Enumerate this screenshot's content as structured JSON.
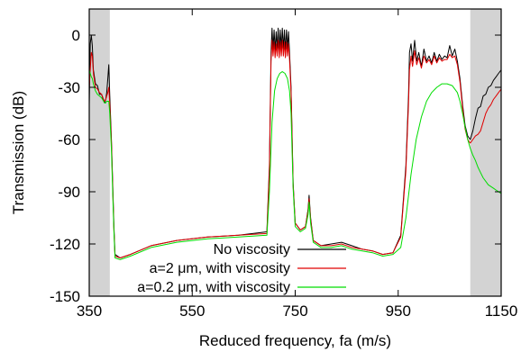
{
  "chart_data": {
    "type": "line",
    "xlabel": "Reduced frequency, fa (m/s)",
    "ylabel": "Transmission (dB)",
    "xlim": [
      350,
      1150
    ],
    "ylim": [
      -150,
      15
    ],
    "x_ticks": [
      350,
      550,
      750,
      950,
      1150
    ],
    "y_ticks": [
      0,
      -30,
      -60,
      -90,
      -120,
      -150
    ],
    "grid": false,
    "legend_position": "bottom-right",
    "shaded_bands": [
      {
        "x_from": 350,
        "x_to": 390,
        "color": "#d3d3d3"
      },
      {
        "x_from": 1090,
        "x_to": 1150,
        "color": "#d3d3d3"
      }
    ],
    "series": [
      {
        "name": "No viscosity",
        "color": "#000000",
        "points": [
          [
            350,
            -40
          ],
          [
            352,
            -5
          ],
          [
            354,
            0
          ],
          [
            356,
            -6
          ],
          [
            358,
            -20
          ],
          [
            362,
            -28
          ],
          [
            366,
            -29
          ],
          [
            370,
            -34
          ],
          [
            374,
            -34
          ],
          [
            378,
            -38
          ],
          [
            380,
            -39
          ],
          [
            382,
            -37
          ],
          [
            384,
            -33
          ],
          [
            386,
            -25
          ],
          [
            388,
            -17
          ],
          [
            390,
            -35
          ],
          [
            393,
            -60
          ],
          [
            396,
            -90
          ],
          [
            398,
            -110
          ],
          [
            400,
            -126
          ],
          [
            410,
            -128
          ],
          [
            430,
            -126
          ],
          [
            470,
            -121
          ],
          [
            520,
            -118
          ],
          [
            580,
            -116
          ],
          [
            640,
            -115
          ],
          [
            695,
            -113
          ],
          [
            700,
            -75
          ],
          [
            703,
            -10
          ],
          [
            705,
            4
          ],
          [
            707,
            -8
          ],
          [
            709,
            3
          ],
          [
            711,
            -9
          ],
          [
            713,
            2
          ],
          [
            715,
            -8
          ],
          [
            717,
            4
          ],
          [
            719,
            -9
          ],
          [
            721,
            3
          ],
          [
            723,
            -8
          ],
          [
            725,
            4
          ],
          [
            727,
            -8
          ],
          [
            729,
            3
          ],
          [
            731,
            -9
          ],
          [
            733,
            3
          ],
          [
            735,
            -8
          ],
          [
            737,
            2
          ],
          [
            739,
            -10
          ],
          [
            742,
            -30
          ],
          [
            746,
            -85
          ],
          [
            750,
            -108
          ],
          [
            760,
            -112
          ],
          [
            770,
            -110
          ],
          [
            775,
            -100
          ],
          [
            777,
            -92
          ],
          [
            780,
            -105
          ],
          [
            785,
            -118
          ],
          [
            800,
            -121
          ],
          [
            820,
            -120
          ],
          [
            840,
            -119
          ],
          [
            860,
            -121
          ],
          [
            880,
            -123
          ],
          [
            900,
            -124
          ],
          [
            920,
            -126
          ],
          [
            940,
            -125
          ],
          [
            955,
            -115
          ],
          [
            965,
            -75
          ],
          [
            970,
            -35
          ],
          [
            972,
            -10
          ],
          [
            975,
            -5
          ],
          [
            978,
            -15
          ],
          [
            982,
            -3
          ],
          [
            986,
            -15
          ],
          [
            990,
            -10
          ],
          [
            995,
            -18
          ],
          [
            1000,
            -8
          ],
          [
            1005,
            -15
          ],
          [
            1010,
            -12
          ],
          [
            1015,
            -16
          ],
          [
            1020,
            -10
          ],
          [
            1025,
            -15
          ],
          [
            1030,
            -11
          ],
          [
            1035,
            -14
          ],
          [
            1040,
            -12
          ],
          [
            1045,
            -13
          ],
          [
            1050,
            -6
          ],
          [
            1055,
            -12
          ],
          [
            1060,
            -8
          ],
          [
            1065,
            -15
          ],
          [
            1070,
            -25
          ],
          [
            1075,
            -40
          ],
          [
            1080,
            -52
          ],
          [
            1085,
            -58
          ],
          [
            1090,
            -60
          ],
          [
            1095,
            -55
          ],
          [
            1100,
            -48
          ],
          [
            1105,
            -42
          ],
          [
            1110,
            -41
          ],
          [
            1115,
            -35
          ],
          [
            1120,
            -34
          ],
          [
            1125,
            -30
          ],
          [
            1130,
            -29
          ],
          [
            1135,
            -26
          ],
          [
            1140,
            -24
          ],
          [
            1145,
            -22
          ],
          [
            1150,
            -20
          ]
        ]
      },
      {
        "name": "a=2 μm, with viscosity",
        "color": "#e00000",
        "points": [
          [
            350,
            -30
          ],
          [
            352,
            -20
          ],
          [
            354,
            -10
          ],
          [
            356,
            -12
          ],
          [
            358,
            -22
          ],
          [
            362,
            -30
          ],
          [
            366,
            -31
          ],
          [
            370,
            -33
          ],
          [
            374,
            -34
          ],
          [
            378,
            -37
          ],
          [
            380,
            -38
          ],
          [
            382,
            -37
          ],
          [
            384,
            -35
          ],
          [
            386,
            -33
          ],
          [
            388,
            -30
          ],
          [
            390,
            -40
          ],
          [
            393,
            -62
          ],
          [
            396,
            -92
          ],
          [
            398,
            -112
          ],
          [
            400,
            -127
          ],
          [
            410,
            -128
          ],
          [
            430,
            -126
          ],
          [
            470,
            -121
          ],
          [
            520,
            -118
          ],
          [
            580,
            -116
          ],
          [
            640,
            -115
          ],
          [
            695,
            -114
          ],
          [
            700,
            -78
          ],
          [
            703,
            -15
          ],
          [
            705,
            -3
          ],
          [
            707,
            -12
          ],
          [
            709,
            -4
          ],
          [
            711,
            -13
          ],
          [
            713,
            -5
          ],
          [
            715,
            -12
          ],
          [
            717,
            -3
          ],
          [
            719,
            -13
          ],
          [
            721,
            -4
          ],
          [
            723,
            -12
          ],
          [
            725,
            -3
          ],
          [
            727,
            -12
          ],
          [
            729,
            -4
          ],
          [
            731,
            -13
          ],
          [
            733,
            -4
          ],
          [
            735,
            -12
          ],
          [
            737,
            -5
          ],
          [
            739,
            -14
          ],
          [
            742,
            -33
          ],
          [
            746,
            -86
          ],
          [
            750,
            -108
          ],
          [
            760,
            -112
          ],
          [
            770,
            -110
          ],
          [
            775,
            -101
          ],
          [
            777,
            -94
          ],
          [
            780,
            -106
          ],
          [
            785,
            -118
          ],
          [
            800,
            -121
          ],
          [
            820,
            -121
          ],
          [
            840,
            -120
          ],
          [
            860,
            -122
          ],
          [
            880,
            -123
          ],
          [
            900,
            -124
          ],
          [
            920,
            -126
          ],
          [
            940,
            -125
          ],
          [
            955,
            -116
          ],
          [
            965,
            -78
          ],
          [
            970,
            -40
          ],
          [
            972,
            -20
          ],
          [
            975,
            -12
          ],
          [
            978,
            -18
          ],
          [
            982,
            -9
          ],
          [
            986,
            -17
          ],
          [
            990,
            -13
          ],
          [
            995,
            -19
          ],
          [
            1000,
            -12
          ],
          [
            1005,
            -16
          ],
          [
            1010,
            -14
          ],
          [
            1015,
            -17
          ],
          [
            1020,
            -12
          ],
          [
            1025,
            -16
          ],
          [
            1030,
            -13
          ],
          [
            1035,
            -15
          ],
          [
            1040,
            -14
          ],
          [
            1045,
            -14
          ],
          [
            1050,
            -11
          ],
          [
            1055,
            -13
          ],
          [
            1060,
            -12
          ],
          [
            1065,
            -17
          ],
          [
            1070,
            -27
          ],
          [
            1075,
            -42
          ],
          [
            1080,
            -54
          ],
          [
            1085,
            -60
          ],
          [
            1090,
            -62
          ],
          [
            1095,
            -60
          ],
          [
            1100,
            -58
          ],
          [
            1105,
            -57
          ],
          [
            1110,
            -55
          ],
          [
            1115,
            -50
          ],
          [
            1120,
            -45
          ],
          [
            1125,
            -42
          ],
          [
            1130,
            -40
          ],
          [
            1135,
            -37
          ],
          [
            1140,
            -35
          ],
          [
            1145,
            -33
          ],
          [
            1150,
            -31
          ]
        ]
      },
      {
        "name": "a=0.2 μm, with viscosity",
        "color": "#00dd00",
        "points": [
          [
            350,
            -20
          ],
          [
            352,
            -22
          ],
          [
            354,
            -24
          ],
          [
            356,
            -25
          ],
          [
            358,
            -28
          ],
          [
            362,
            -32
          ],
          [
            366,
            -34
          ],
          [
            370,
            -35
          ],
          [
            374,
            -36
          ],
          [
            378,
            -38
          ],
          [
            380,
            -39
          ],
          [
            382,
            -39
          ],
          [
            384,
            -38
          ],
          [
            386,
            -38
          ],
          [
            388,
            -38
          ],
          [
            390,
            -45
          ],
          [
            393,
            -66
          ],
          [
            396,
            -95
          ],
          [
            398,
            -113
          ],
          [
            400,
            -128
          ],
          [
            410,
            -129
          ],
          [
            430,
            -127
          ],
          [
            470,
            -122
          ],
          [
            520,
            -119
          ],
          [
            580,
            -117
          ],
          [
            640,
            -116
          ],
          [
            695,
            -115
          ],
          [
            700,
            -90
          ],
          [
            705,
            -50
          ],
          [
            710,
            -32
          ],
          [
            715,
            -25
          ],
          [
            720,
            -22
          ],
          [
            725,
            -21
          ],
          [
            730,
            -22
          ],
          [
            735,
            -25
          ],
          [
            739,
            -32
          ],
          [
            742,
            -45
          ],
          [
            746,
            -88
          ],
          [
            750,
            -110
          ],
          [
            760,
            -113
          ],
          [
            770,
            -111
          ],
          [
            775,
            -103
          ],
          [
            777,
            -96
          ],
          [
            780,
            -108
          ],
          [
            785,
            -119
          ],
          [
            800,
            -122
          ],
          [
            820,
            -122
          ],
          [
            840,
            -121
          ],
          [
            860,
            -123
          ],
          [
            880,
            -124
          ],
          [
            900,
            -125
          ],
          [
            920,
            -127
          ],
          [
            940,
            -126
          ],
          [
            955,
            -122
          ],
          [
            965,
            -105
          ],
          [
            975,
            -80
          ],
          [
            985,
            -60
          ],
          [
            995,
            -47
          ],
          [
            1005,
            -38
          ],
          [
            1015,
            -33
          ],
          [
            1025,
            -30
          ],
          [
            1035,
            -28
          ],
          [
            1045,
            -28
          ],
          [
            1055,
            -29
          ],
          [
            1065,
            -33
          ],
          [
            1070,
            -38
          ],
          [
            1075,
            -45
          ],
          [
            1080,
            -53
          ],
          [
            1085,
            -60
          ],
          [
            1090,
            -65
          ],
          [
            1095,
            -69
          ],
          [
            1100,
            -72
          ],
          [
            1105,
            -76
          ],
          [
            1110,
            -79
          ],
          [
            1115,
            -82
          ],
          [
            1120,
            -84
          ],
          [
            1125,
            -86
          ],
          [
            1130,
            -87
          ],
          [
            1135,
            -88
          ],
          [
            1140,
            -89
          ],
          [
            1145,
            -90
          ],
          [
            1150,
            -91
          ]
        ]
      }
    ]
  }
}
